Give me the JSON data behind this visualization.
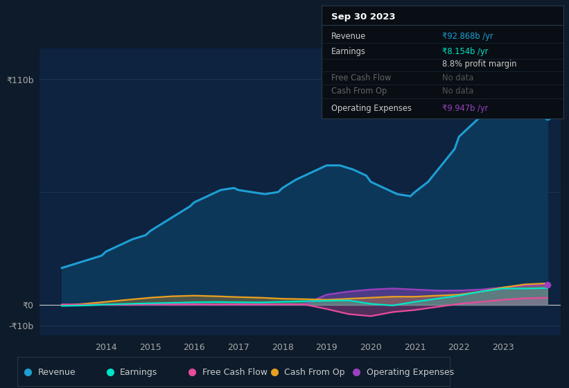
{
  "bg_color": "#0d1b2a",
  "chart_bg": "#0d2340",
  "grid_color": "#1e3a50",
  "ylim": [
    -15,
    125
  ],
  "ytick_vals": [
    -10,
    0,
    110
  ],
  "ytick_labels": [
    "-₹10b",
    "₹0",
    "₹110b"
  ],
  "xlim": [
    2012.5,
    2024.3
  ],
  "xticks": [
    2014,
    2015,
    2016,
    2017,
    2018,
    2019,
    2020,
    2021,
    2022,
    2023
  ],
  "revenue_color": "#1e9fd4",
  "revenue_fill": "#0d3a5c",
  "earnings_color": "#00e5c8",
  "fcf_color": "#e84b9a",
  "cashop_color": "#e8a020",
  "opex_color": "#9b40bf",
  "revenue_x": [
    2013.0,
    2013.3,
    2013.6,
    2013.9,
    2014.0,
    2014.3,
    2014.6,
    2014.9,
    2015.0,
    2015.3,
    2015.6,
    2015.9,
    2016.0,
    2016.3,
    2016.6,
    2016.9,
    2017.0,
    2017.3,
    2017.6,
    2017.9,
    2018.0,
    2018.3,
    2018.6,
    2018.9,
    2019.0,
    2019.3,
    2019.6,
    2019.9,
    2020.0,
    2020.3,
    2020.6,
    2020.9,
    2021.0,
    2021.3,
    2021.6,
    2021.9,
    2022.0,
    2022.3,
    2022.6,
    2022.9,
    2023.0,
    2023.3,
    2023.6,
    2023.9,
    2024.0
  ],
  "revenue_y": [
    18,
    20,
    22,
    24,
    26,
    29,
    32,
    34,
    36,
    40,
    44,
    48,
    50,
    53,
    56,
    57,
    56,
    55,
    54,
    55,
    57,
    61,
    64,
    67,
    68,
    68,
    66,
    63,
    60,
    57,
    54,
    53,
    55,
    60,
    68,
    76,
    82,
    88,
    94,
    100,
    102,
    98,
    94,
    92,
    92
  ],
  "earnings_x": [
    2013.0,
    2013.5,
    2014.0,
    2014.5,
    2015.0,
    2015.5,
    2016.0,
    2016.5,
    2017.0,
    2017.5,
    2018.0,
    2018.5,
    2019.0,
    2019.5,
    2020.0,
    2020.5,
    2021.0,
    2021.5,
    2022.0,
    2022.5,
    2023.0,
    2023.5,
    2024.0
  ],
  "earnings_y": [
    -0.5,
    -0.3,
    0.2,
    0.5,
    0.8,
    1.0,
    1.3,
    1.4,
    1.3,
    1.2,
    1.5,
    1.8,
    2.0,
    2.2,
    0.5,
    -0.3,
    1.5,
    3.0,
    4.5,
    6.5,
    8.0,
    8.0,
    8.2
  ],
  "fcf_x": [
    2013.0,
    2013.5,
    2014.0,
    2014.5,
    2015.0,
    2015.5,
    2016.0,
    2016.5,
    2017.0,
    2017.5,
    2018.0,
    2018.5,
    2019.0,
    2019.5,
    2020.0,
    2020.5,
    2021.0,
    2021.5,
    2022.0,
    2022.5,
    2023.0,
    2023.5,
    2024.0
  ],
  "fcf_y": [
    0.2,
    0.1,
    0.2,
    0.1,
    0.3,
    0.2,
    0.3,
    0.2,
    0.3,
    0.2,
    0.3,
    0.2,
    -2.0,
    -4.5,
    -5.5,
    -3.5,
    -2.5,
    -1.0,
    0.5,
    1.5,
    2.5,
    3.2,
    3.5
  ],
  "cashop_x": [
    2013.0,
    2013.5,
    2014.0,
    2014.5,
    2015.0,
    2015.5,
    2016.0,
    2016.5,
    2017.0,
    2017.5,
    2018.0,
    2018.5,
    2019.0,
    2019.5,
    2020.0,
    2020.5,
    2021.0,
    2021.5,
    2022.0,
    2022.5,
    2023.0,
    2023.5,
    2024.0
  ],
  "cashop_y": [
    -0.3,
    0.5,
    1.5,
    2.5,
    3.5,
    4.2,
    4.5,
    4.2,
    3.8,
    3.5,
    3.0,
    2.8,
    2.5,
    3.0,
    3.5,
    4.0,
    4.0,
    4.5,
    5.0,
    6.5,
    8.5,
    10.0,
    10.5
  ],
  "opex_x": [
    2013.0,
    2013.5,
    2014.0,
    2014.5,
    2015.0,
    2015.5,
    2016.0,
    2016.5,
    2017.0,
    2017.5,
    2018.0,
    2018.5,
    2019.0,
    2019.5,
    2020.0,
    2020.5,
    2021.0,
    2021.5,
    2022.0,
    2022.5,
    2023.0,
    2023.5,
    2024.0
  ],
  "opex_y": [
    0.1,
    0.1,
    0.1,
    0.1,
    0.2,
    0.2,
    0.2,
    0.2,
    0.2,
    0.2,
    0.3,
    0.3,
    5.0,
    6.5,
    7.5,
    8.0,
    7.5,
    7.0,
    7.0,
    7.5,
    8.5,
    9.5,
    9.8
  ],
  "legend_items": [
    {
      "label": "Revenue",
      "color": "#1e9fd4"
    },
    {
      "label": "Earnings",
      "color": "#00e5c8"
    },
    {
      "label": "Free Cash Flow",
      "color": "#e84b9a"
    },
    {
      "label": "Cash From Op",
      "color": "#e8a020"
    },
    {
      "label": "Operating Expenses",
      "color": "#9b40bf"
    }
  ],
  "tooltip_title": "Sep 30 2023",
  "tooltip_rows": [
    {
      "label": "Revenue",
      "value": "₹92.868b /yr",
      "value_color": "#1e9fd4",
      "label_color": "#cccccc"
    },
    {
      "label": "Earnings",
      "value": "₹8.154b /yr",
      "value_color": "#00e5c8",
      "label_color": "#cccccc"
    },
    {
      "label": "",
      "value": "8.8% profit margin",
      "value_color": "#cccccc",
      "label_color": "#cccccc"
    },
    {
      "label": "Free Cash Flow",
      "value": "No data",
      "value_color": "#555555",
      "label_color": "#666666"
    },
    {
      "label": "Cash From Op",
      "value": "No data",
      "value_color": "#555555",
      "label_color": "#666666"
    },
    {
      "label": "Operating Expenses",
      "value": "₹9.947b /yr",
      "value_color": "#9b40bf",
      "label_color": "#cccccc"
    }
  ]
}
